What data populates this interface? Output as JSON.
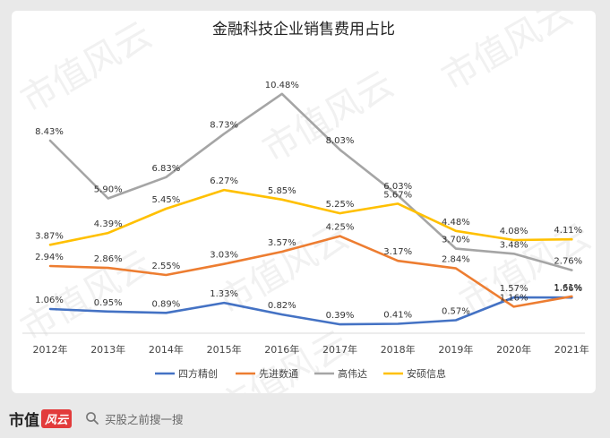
{
  "chart_data": {
    "type": "line",
    "title": "金融科技企业销售费用占比",
    "categories": [
      "2012年",
      "2013年",
      "2014年",
      "2015年",
      "2016年",
      "2017年",
      "2018年",
      "2019年",
      "2020年",
      "2021年"
    ],
    "series": [
      {
        "name": "四方精创",
        "color": "#4472c4",
        "values": [
          1.06,
          0.95,
          0.89,
          1.33,
          0.82,
          0.39,
          0.41,
          0.57,
          1.57,
          1.56
        ],
        "labels": [
          "1.06%",
          "0.95%",
          "0.89%",
          "1.33%",
          "0.82%",
          "0.39%",
          "0.41%",
          "0.57%",
          "1.57%",
          "1.56%"
        ]
      },
      {
        "name": "先进数通",
        "color": "#ed7d31",
        "values": [
          2.94,
          2.86,
          2.55,
          3.03,
          3.57,
          4.25,
          3.17,
          2.84,
          1.16,
          1.61
        ],
        "labels": [
          "2.94%",
          "2.86%",
          "2.55%",
          "3.03%",
          "3.57%",
          "4.25%",
          "3.17%",
          "2.84%",
          "1.16%",
          "1.61%"
        ]
      },
      {
        "name": "高伟达",
        "color": "#a5a5a5",
        "values": [
          8.43,
          5.9,
          6.83,
          8.73,
          10.48,
          8.03,
          6.03,
          3.7,
          3.48,
          2.76
        ],
        "labels": [
          "8.43%",
          "5.90%",
          "6.83%",
          "8.73%",
          "10.48%",
          "8.03%",
          "6.03%",
          "3.70%",
          "3.48%",
          "2.76%"
        ]
      },
      {
        "name": "安硕信息",
        "color": "#ffc000",
        "values": [
          3.87,
          4.39,
          5.45,
          6.27,
          5.85,
          5.25,
          5.67,
          4.48,
          4.08,
          4.11
        ],
        "labels": [
          "3.87%",
          "4.39%",
          "5.45%",
          "6.27%",
          "5.85%",
          "5.25%",
          "5.67%",
          "4.48%",
          "4.08%",
          "4.11%"
        ]
      }
    ],
    "ylim": [
      0,
      11
    ],
    "grid": false,
    "legend_position": "bottom"
  },
  "watermark": "市值风云",
  "footer": {
    "logo_text": "市值",
    "logo_script": "风云",
    "search_text": "买股之前搜一搜",
    "search_icon": "search-icon"
  }
}
